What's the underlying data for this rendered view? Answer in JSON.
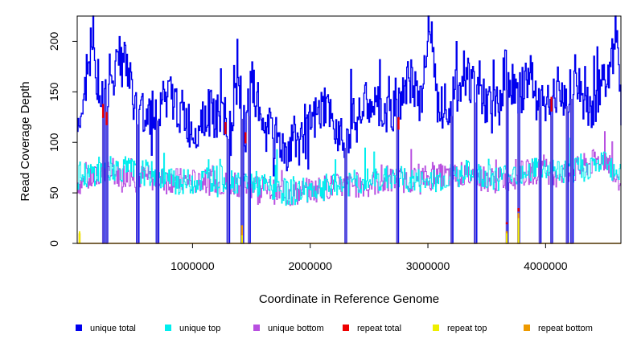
{
  "chart_data": {
    "type": "line",
    "title": "",
    "xlabel": "Coordinate in Reference Genome",
    "ylabel": "Read Coverage Depth",
    "xlim": [
      20000,
      4640000
    ],
    "ylim": [
      0,
      225
    ],
    "x_ticks": [
      1000000,
      2000000,
      3000000,
      4000000
    ],
    "x_tick_labels": [
      "1000000",
      "2000000",
      "3000000",
      "4000000"
    ],
    "y_ticks": [
      0,
      50,
      100,
      150,
      200
    ],
    "y_tick_labels": [
      "0",
      "50",
      "100",
      "150",
      "200"
    ],
    "legend_position": "bottom",
    "series": [
      {
        "name": "unique total",
        "color": "#0000ee",
        "x": [
          40000,
          80000,
          120000,
          250000,
          300000,
          400000,
          500000,
          550000,
          700000,
          800000,
          900000,
          1000000,
          1100000,
          1200000,
          1280000,
          1320000,
          1400000,
          1450000,
          1500000,
          1600000,
          1700000,
          1800000,
          1850000,
          1950000,
          2000000,
          2100000,
          2200000,
          2300000,
          2400000,
          2500000,
          2600000,
          2700000,
          2760000,
          2850000,
          2950000,
          3000000,
          3100000,
          3200000,
          3300000,
          3400000,
          3500000,
          3600000,
          3650000,
          3700000,
          3760000,
          3850000,
          3950000,
          4050000,
          4150000,
          4250000,
          4350000,
          4450000,
          4550000,
          4600000,
          4640000
        ],
        "y": [
          120,
          150,
          200,
          135,
          160,
          195,
          140,
          125,
          135,
          145,
          130,
          110,
          130,
          125,
          120,
          110,
          155,
          110,
          160,
          115,
          105,
          90,
          100,
          100,
          115,
          130,
          120,
          105,
          125,
          140,
          130,
          125,
          145,
          160,
          140,
          225,
          145,
          140,
          170,
          155,
          135,
          130,
          175,
          160,
          140,
          165,
          150,
          140,
          145,
          165,
          130,
          150,
          175,
          215,
          140
        ]
      },
      {
        "name": "unique top",
        "color": "#00eeee",
        "x": [
          40000,
          300000,
          600000,
          900000,
          1200000,
          1500000,
          1800000,
          2100000,
          2400000,
          2700000,
          3000000,
          3300000,
          3600000,
          3900000,
          4200000,
          4500000,
          4640000
        ],
        "y": [
          65,
          75,
          70,
          60,
          65,
          60,
          50,
          55,
          60,
          65,
          60,
          70,
          65,
          75,
          70,
          80,
          65
        ]
      },
      {
        "name": "unique bottom",
        "color": "#b84fe0",
        "x": [
          40000,
          300000,
          600000,
          900000,
          1200000,
          1500000,
          1800000,
          2100000,
          2400000,
          2700000,
          3000000,
          3300000,
          3600000,
          3900000,
          4200000,
          4500000,
          4640000
        ],
        "y": [
          60,
          70,
          65,
          62,
          60,
          58,
          48,
          55,
          58,
          62,
          65,
          68,
          62,
          72,
          70,
          85,
          62
        ]
      },
      {
        "name": "repeat total",
        "color": "#ee0000",
        "x": [
          240000,
          270000,
          1280000,
          1450000,
          2750000,
          3670000,
          3770000,
          4050000
        ],
        "y": [
          138,
          130,
          120,
          110,
          125,
          21,
          35,
          145
        ]
      },
      {
        "name": "repeat top",
        "color": "#eeee00",
        "x": [
          40000,
          1420000,
          3670000,
          3770000
        ],
        "y": [
          12,
          8,
          10,
          25
        ]
      },
      {
        "name": "repeat bottom",
        "color": "#ee9a00",
        "x": [
          40000,
          1420000,
          3670000,
          3770000
        ],
        "y": [
          10,
          18,
          12,
          30
        ]
      }
    ],
    "coverage_drops_x": [
      240000,
      270000,
      530000,
      700000,
      1300000,
      1420000,
      1480000,
      2300000,
      2740000,
      3200000,
      3400000,
      3670000,
      3770000,
      3950000,
      4050000,
      4180000,
      4220000
    ]
  }
}
